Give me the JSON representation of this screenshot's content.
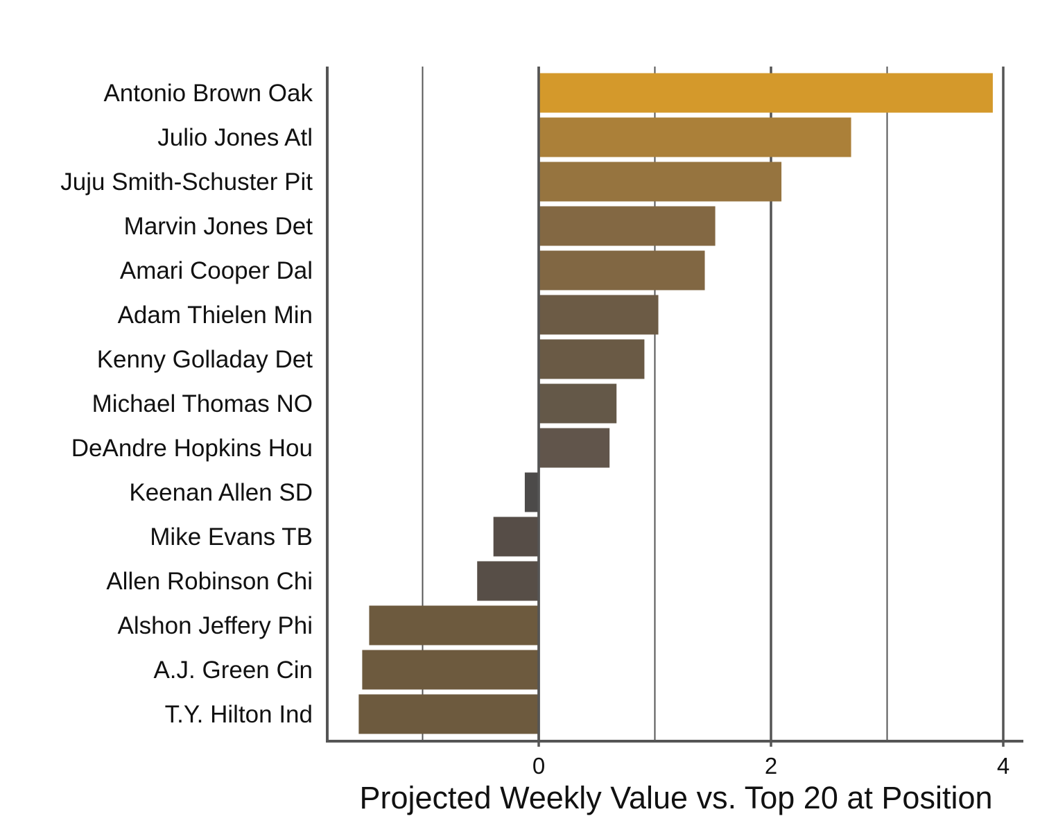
{
  "chart_data": {
    "type": "bar",
    "orientation": "horizontal",
    "title": "",
    "xlabel": "Projected Weekly Value vs. Top 20 at Position",
    "ylabel": "",
    "xlim": [
      -1.83,
      4.18
    ],
    "x_ticks": [
      0,
      2,
      4
    ],
    "x_minor_gridlines": [
      -1,
      1,
      3
    ],
    "grid": true,
    "legend": "none",
    "categories": [
      "Antonio Brown Oak",
      "Julio Jones Atl",
      "Juju Smith-Schuster Pit",
      "Marvin Jones Det",
      "Amari Cooper Dal",
      "Adam Thielen Min",
      "Kenny Golladay Det",
      "Michael Thomas NO",
      "DeAndre Hopkins Hou",
      "Keenan Allen SD",
      "Mike Evans TB",
      "Allen Robinson Chi",
      "Alshon Jeffery Phi",
      "A.J. Green Cin",
      "T.Y. Hilton Ind"
    ],
    "values": [
      3.91,
      2.69,
      2.09,
      1.52,
      1.43,
      1.03,
      0.91,
      0.67,
      0.61,
      -0.12,
      -0.39,
      -0.53,
      -1.46,
      -1.52,
      -1.55
    ],
    "colors": [
      "#d4992b",
      "#ab8039",
      "#96743f",
      "#836843",
      "#816743",
      "#6c5b45",
      "#6a5a45",
      "#645848",
      "#61554b",
      "#4c4a49",
      "#564d47",
      "#574e47",
      "#6d5a3e",
      "#6d5a3e",
      "#6d5a3e"
    ]
  }
}
